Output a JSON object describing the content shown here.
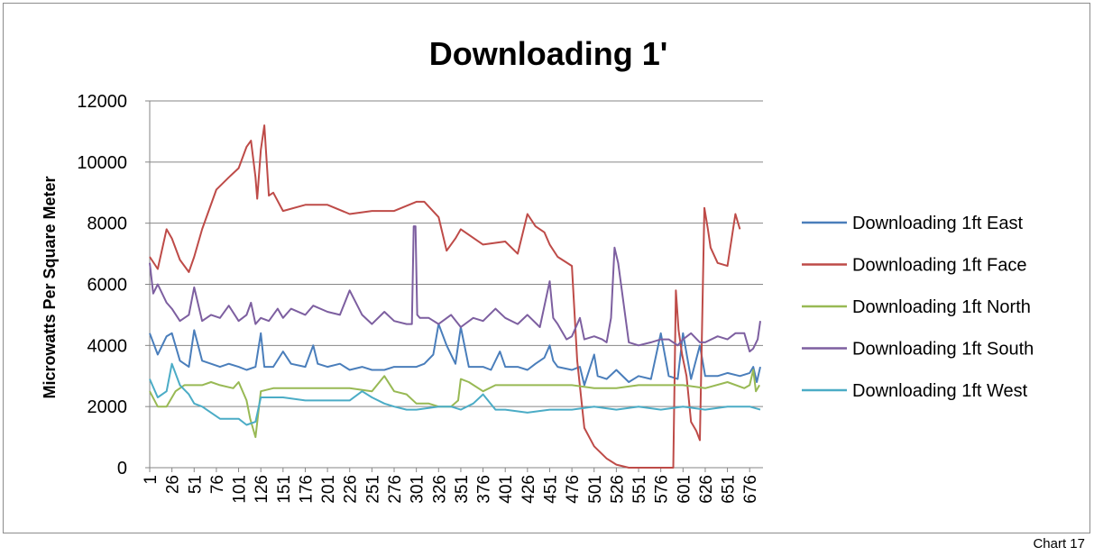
{
  "footer": {
    "label": "Chart 17"
  },
  "chart_data": {
    "type": "line",
    "title": "Downloading 1'",
    "xlabel": "",
    "ylabel": "Microwatts Per Square Meter",
    "ylim": [
      0,
      12000
    ],
    "yticks": [
      0,
      2000,
      4000,
      6000,
      8000,
      10000,
      12000
    ],
    "xlim": [
      1,
      691
    ],
    "xticks": [
      1,
      26,
      51,
      76,
      101,
      126,
      151,
      176,
      201,
      226,
      251,
      276,
      301,
      326,
      351,
      376,
      401,
      426,
      451,
      476,
      501,
      526,
      551,
      576,
      601,
      626,
      651,
      676
    ],
    "grid": "horizontal",
    "legend_position": "right",
    "series": [
      {
        "name": "Downloading 1ft East",
        "color": "#4a7ebb",
        "x": [
          1,
          10,
          20,
          26,
          35,
          45,
          51,
          60,
          70,
          80,
          90,
          101,
          110,
          120,
          126,
          130,
          140,
          151,
          160,
          176,
          185,
          190,
          201,
          215,
          226,
          240,
          251,
          265,
          276,
          290,
          301,
          310,
          320,
          326,
          335,
          345,
          351,
          360,
          376,
          385,
          395,
          401,
          415,
          426,
          435,
          445,
          451,
          455,
          460,
          476,
          485,
          490,
          501,
          505,
          515,
          526,
          540,
          551,
          565,
          576,
          585,
          595,
          601,
          610,
          620,
          626,
          640,
          651,
          665,
          676,
          680,
          684,
          688
        ],
        "y": [
          4400,
          3700,
          4300,
          4400,
          3500,
          3300,
          4500,
          3500,
          3400,
          3300,
          3400,
          3300,
          3200,
          3300,
          4400,
          3300,
          3300,
          3800,
          3400,
          3300,
          4000,
          3400,
          3300,
          3400,
          3200,
          3300,
          3200,
          3200,
          3300,
          3300,
          3300,
          3400,
          3700,
          4700,
          4000,
          3400,
          4600,
          3300,
          3300,
          3200,
          3800,
          3300,
          3300,
          3200,
          3400,
          3600,
          4000,
          3500,
          3300,
          3200,
          3300,
          2700,
          3700,
          3000,
          2900,
          3200,
          2800,
          3000,
          2900,
          4400,
          3000,
          2900,
          4400,
          2900,
          4000,
          3000,
          3000,
          3100,
          3000,
          3100,
          3300,
          2800,
          3300
        ]
      },
      {
        "name": "Downloading 1ft Face",
        "color": "#be4b48",
        "x": [
          1,
          10,
          20,
          26,
          35,
          45,
          51,
          60,
          76,
          90,
          101,
          110,
          115,
          120,
          122,
          126,
          130,
          135,
          140,
          151,
          176,
          201,
          226,
          251,
          276,
          301,
          310,
          326,
          335,
          345,
          351,
          376,
          401,
          415,
          426,
          435,
          445,
          451,
          460,
          476,
          482,
          490,
          501,
          515,
          526,
          540,
          551,
          560,
          576,
          585,
          590,
          593,
          596,
          600,
          605,
          610,
          616,
          620,
          625,
          629,
          632,
          640,
          651,
          660,
          665
        ],
        "y": [
          6900,
          6500,
          7800,
          7500,
          6800,
          6400,
          6900,
          7800,
          9100,
          9500,
          9800,
          10500,
          10700,
          9500,
          8800,
          10400,
          11200,
          8900,
          9000,
          8400,
          8600,
          8600,
          8300,
          8400,
          8400,
          8700,
          8700,
          8200,
          7100,
          7500,
          7800,
          7300,
          7400,
          7000,
          8300,
          7900,
          7700,
          7300,
          6900,
          6600,
          3500,
          1300,
          700,
          300,
          100,
          0,
          0,
          0,
          0,
          0,
          0,
          5800,
          4500,
          3700,
          3000,
          1500,
          1200,
          900,
          8500,
          7800,
          7200,
          6700,
          6600,
          8300,
          7800
        ]
      },
      {
        "name": "Downloading 1ft North",
        "color": "#98b954",
        "x": [
          1,
          10,
          20,
          30,
          40,
          51,
          60,
          70,
          80,
          95,
          101,
          110,
          114,
          120,
          126,
          140,
          151,
          176,
          201,
          226,
          251,
          265,
          276,
          290,
          301,
          315,
          326,
          340,
          348,
          351,
          360,
          376,
          390,
          401,
          426,
          451,
          476,
          501,
          526,
          551,
          576,
          601,
          626,
          651,
          670,
          676,
          680,
          683,
          687
        ],
        "y": [
          2500,
          2000,
          2000,
          2500,
          2700,
          2700,
          2700,
          2800,
          2700,
          2600,
          2800,
          2200,
          1600,
          1000,
          2500,
          2600,
          2600,
          2600,
          2600,
          2600,
          2500,
          3000,
          2500,
          2400,
          2100,
          2100,
          2000,
          2000,
          2200,
          2900,
          2800,
          2500,
          2700,
          2700,
          2700,
          2700,
          2700,
          2600,
          2600,
          2700,
          2700,
          2700,
          2600,
          2800,
          2600,
          2700,
          3200,
          2500,
          2700
        ]
      },
      {
        "name": "Downloading 1ft South",
        "color": "#7d5fa0",
        "x": [
          1,
          5,
          10,
          20,
          26,
          35,
          45,
          51,
          60,
          70,
          80,
          90,
          101,
          110,
          115,
          120,
          126,
          135,
          145,
          151,
          160,
          176,
          185,
          201,
          215,
          226,
          240,
          251,
          265,
          276,
          290,
          296,
          298,
          300,
          302,
          305,
          315,
          326,
          340,
          351,
          365,
          376,
          390,
          401,
          415,
          426,
          440,
          451,
          455,
          460,
          470,
          476,
          485,
          490,
          501,
          510,
          515,
          520,
          524,
          528,
          540,
          551,
          565,
          576,
          585,
          595,
          601,
          610,
          620,
          626,
          640,
          651,
          660,
          670,
          676,
          680,
          685,
          688
        ],
        "y": [
          6700,
          5700,
          6000,
          5400,
          5200,
          4800,
          5000,
          5900,
          4800,
          5000,
          4900,
          5300,
          4800,
          5000,
          5400,
          4700,
          4900,
          4800,
          5200,
          4900,
          5200,
          5000,
          5300,
          5100,
          5000,
          5800,
          5000,
          4700,
          5100,
          4800,
          4700,
          4700,
          7900,
          7900,
          5000,
          4900,
          4900,
          4700,
          5000,
          4600,
          4900,
          4800,
          5200,
          4900,
          4700,
          5000,
          4600,
          6100,
          4900,
          4700,
          4200,
          4300,
          4900,
          4200,
          4300,
          4200,
          4100,
          4900,
          7200,
          6700,
          4100,
          4000,
          4100,
          4200,
          4200,
          4000,
          4200,
          4400,
          4100,
          4100,
          4300,
          4200,
          4400,
          4400,
          3800,
          3900,
          4200,
          4800
        ]
      },
      {
        "name": "Downloading 1ft West",
        "color": "#4bacc6",
        "x": [
          1,
          10,
          20,
          26,
          35,
          45,
          51,
          60,
          70,
          80,
          90,
          101,
          110,
          120,
          126,
          140,
          151,
          176,
          201,
          226,
          240,
          251,
          265,
          276,
          290,
          301,
          326,
          340,
          351,
          365,
          376,
          390,
          401,
          426,
          451,
          476,
          501,
          526,
          551,
          576,
          601,
          626,
          651,
          676,
          688
        ],
        "y": [
          2900,
          2300,
          2500,
          3400,
          2700,
          2400,
          2100,
          2000,
          1800,
          1600,
          1600,
          1600,
          1400,
          1500,
          2300,
          2300,
          2300,
          2200,
          2200,
          2200,
          2500,
          2300,
          2100,
          2000,
          1900,
          1900,
          2000,
          2000,
          1900,
          2100,
          2400,
          1900,
          1900,
          1800,
          1900,
          1900,
          2000,
          1900,
          2000,
          1900,
          2000,
          1900,
          2000,
          2000,
          1900
        ]
      }
    ]
  }
}
